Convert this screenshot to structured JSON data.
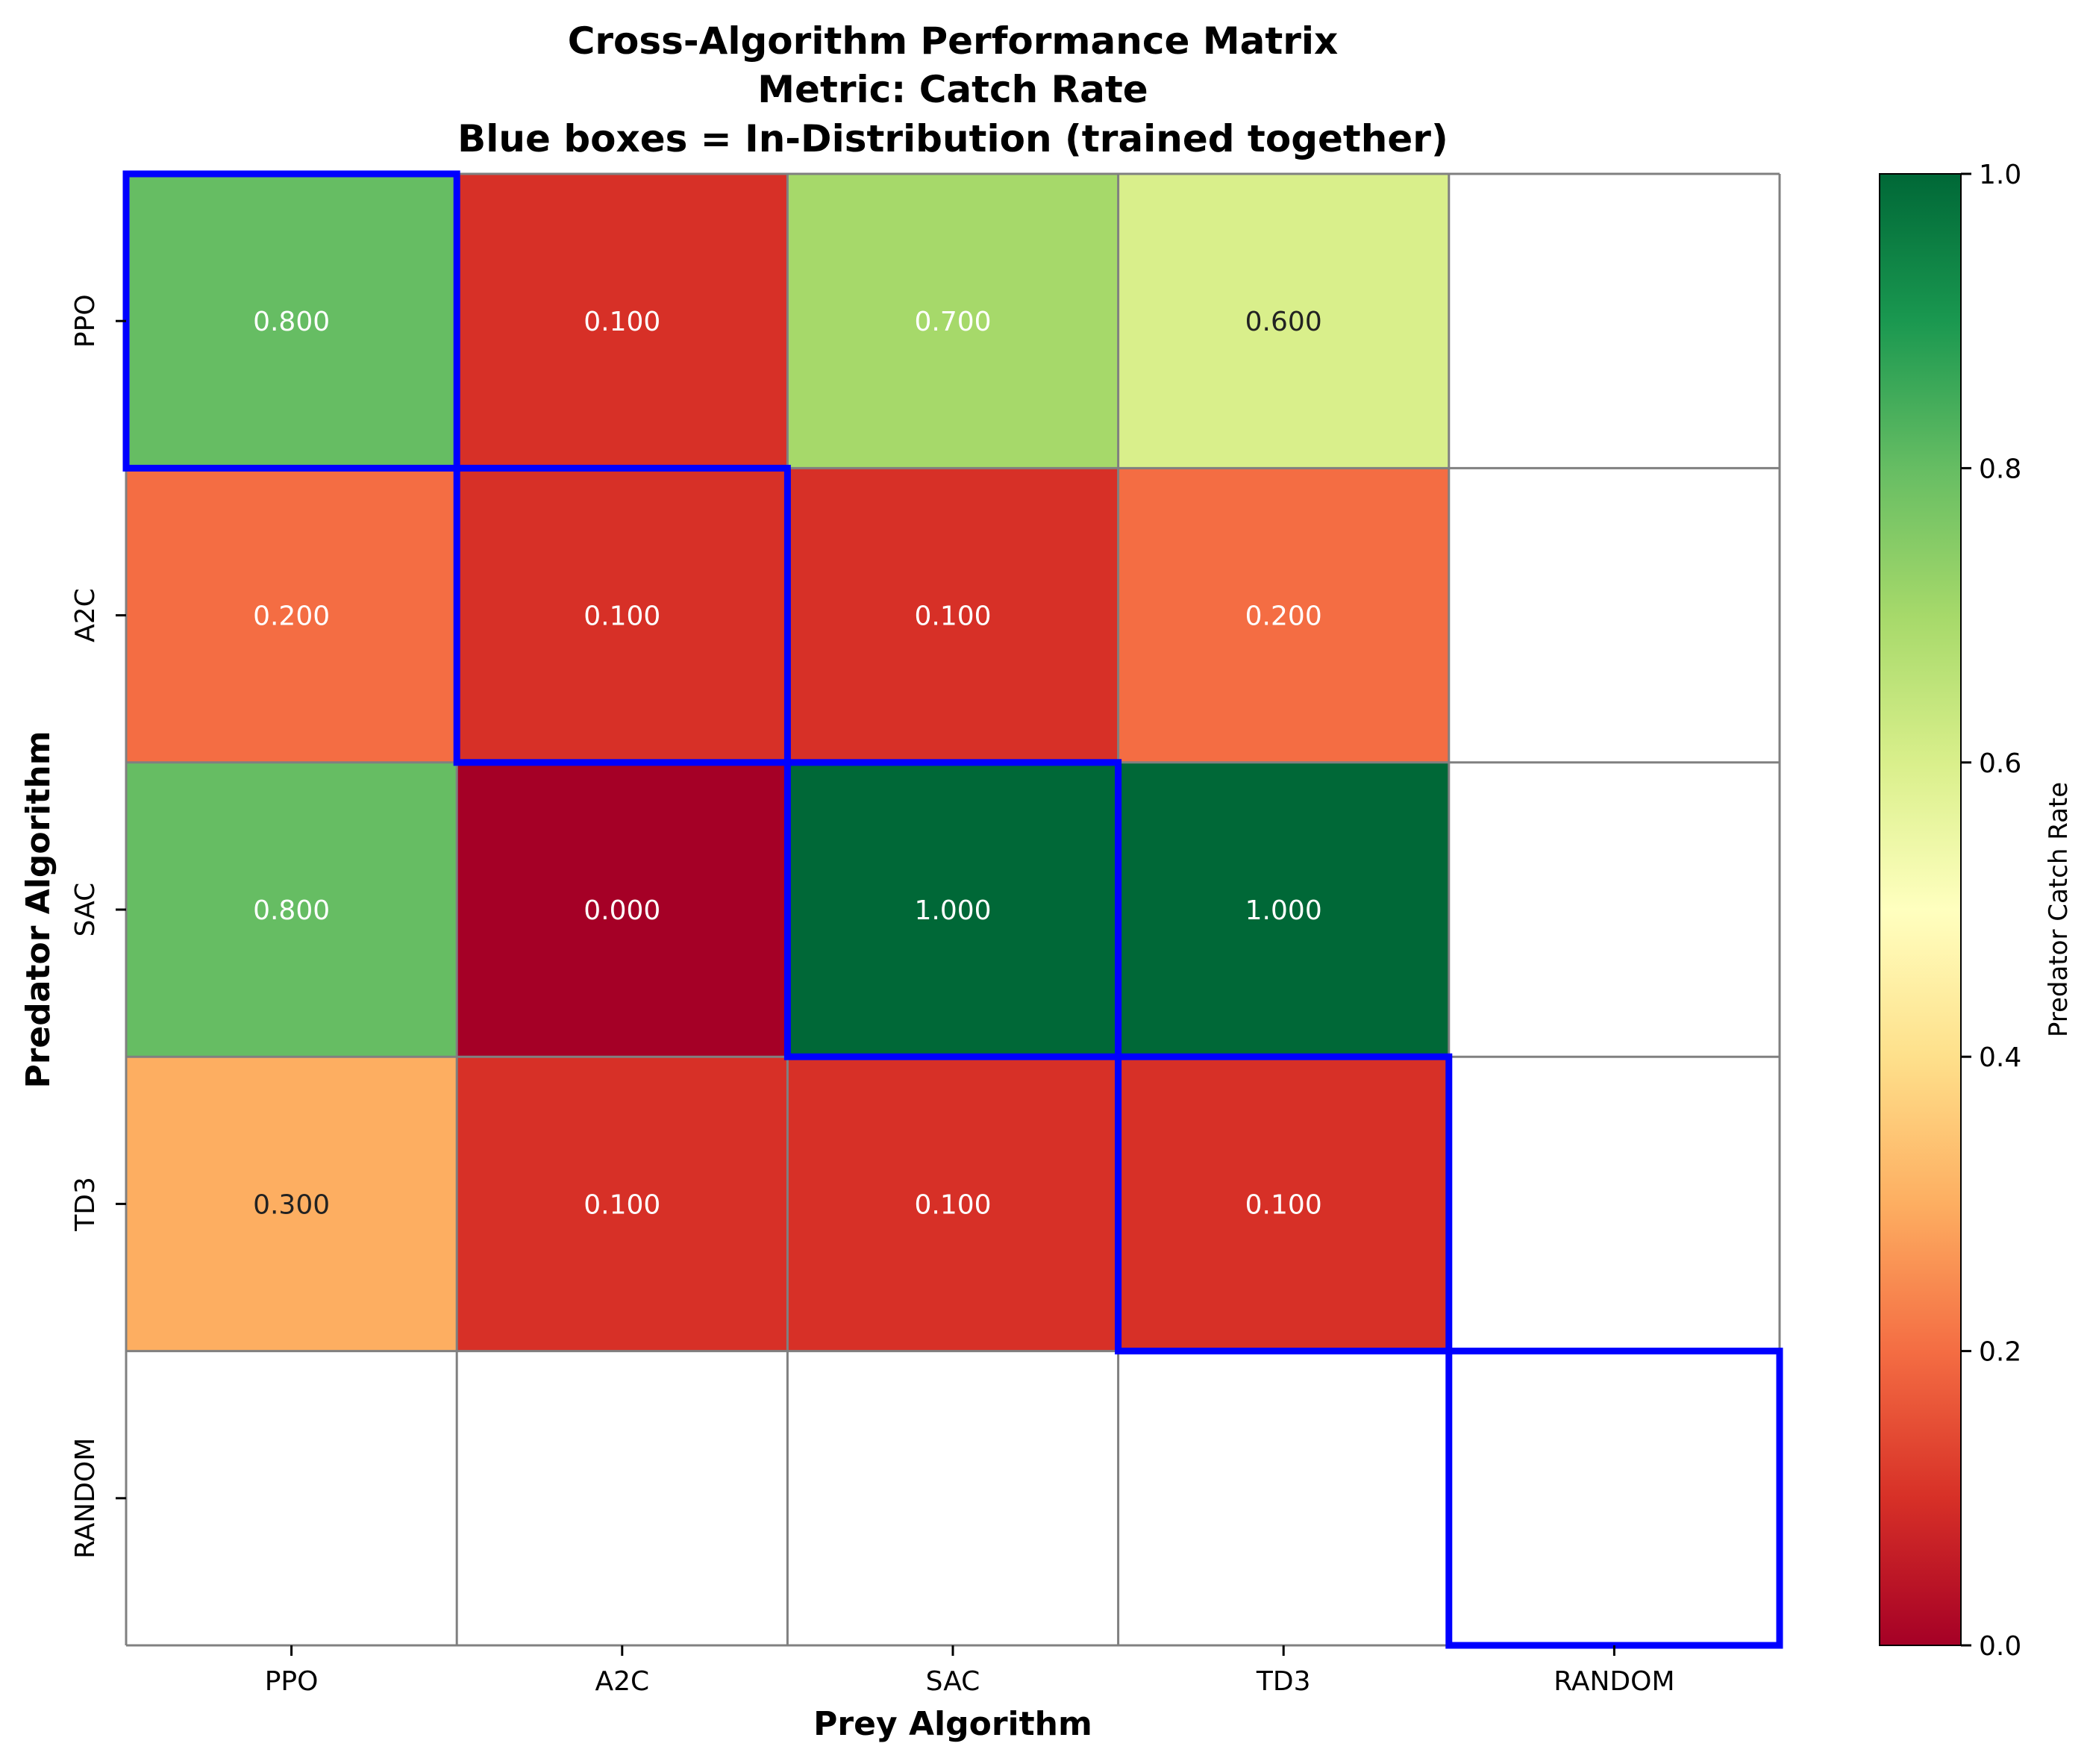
{
  "chart_data": {
    "type": "heatmap",
    "title_lines": [
      "Cross-Algorithm Performance Matrix",
      "Metric: Catch Rate",
      "Blue boxes = In-Distribution (trained together)"
    ],
    "xlabel": "Prey Algorithm",
    "ylabel": "Predator Algorithm",
    "x_categories": [
      "PPO",
      "A2C",
      "SAC",
      "TD3",
      "RANDOM"
    ],
    "y_categories": [
      "PPO",
      "A2C",
      "SAC",
      "TD3",
      "RANDOM"
    ],
    "values": [
      [
        0.8,
        0.1,
        0.7,
        0.6,
        null
      ],
      [
        0.2,
        0.1,
        0.1,
        0.2,
        null
      ],
      [
        0.8,
        0.0,
        1.0,
        1.0,
        null
      ],
      [
        0.3,
        0.1,
        0.1,
        0.1,
        null
      ],
      [
        null,
        null,
        null,
        null,
        null
      ]
    ],
    "value_format": "0.000",
    "colormap": "RdYlGn",
    "vmin": 0.0,
    "vmax": 1.0,
    "colorbar": {
      "label": "Predator Catch Rate",
      "ticks": [
        "0.0",
        "0.2",
        "0.4",
        "0.6",
        "0.8",
        "1.0"
      ]
    },
    "highlight_color": "#0000ff",
    "highlighted_cells": [
      [
        0,
        0
      ],
      [
        1,
        1
      ],
      [
        2,
        2
      ],
      [
        3,
        3
      ],
      [
        4,
        4
      ]
    ],
    "grid_color": "#808080"
  }
}
